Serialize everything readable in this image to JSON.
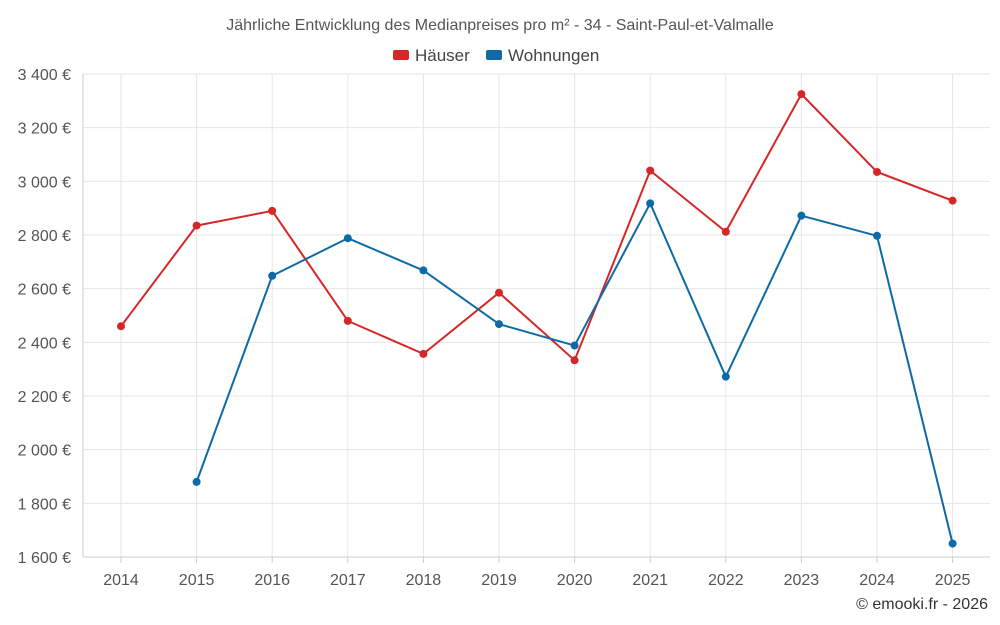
{
  "chart_data": {
    "type": "line",
    "title": "Jährliche Entwicklung des Medianpreises pro m² - 34 - Saint-Paul-et-Valmalle",
    "categories": [
      "2014",
      "2015",
      "2016",
      "2017",
      "2018",
      "2019",
      "2020",
      "2021",
      "2022",
      "2023",
      "2024",
      "2025"
    ],
    "ylim": [
      1600,
      3400
    ],
    "yticks": [
      1600,
      1800,
      2000,
      2200,
      2400,
      2600,
      2800,
      3000,
      3200,
      3400
    ],
    "ytick_labels": [
      "1 600 €",
      "1 800 €",
      "2 000 €",
      "2 200 €",
      "2 400 €",
      "2 600 €",
      "2 800 €",
      "3 000 €",
      "3 200 €",
      "3 400 €"
    ],
    "legend_position": "top-center",
    "series": [
      {
        "name": "Häuser",
        "color": "#d62728",
        "values": [
          2460,
          2835,
          2890,
          2480,
          2357,
          2585,
          2333,
          3040,
          2812,
          3325,
          3035,
          2928
        ]
      },
      {
        "name": "Wohnungen",
        "color": "#0e6aa6",
        "values": [
          null,
          1880,
          2648,
          2788,
          2668,
          2468,
          2388,
          2918,
          2272,
          2872,
          2797,
          1650
        ]
      }
    ]
  },
  "credit": "© emooki.fr - 2026"
}
